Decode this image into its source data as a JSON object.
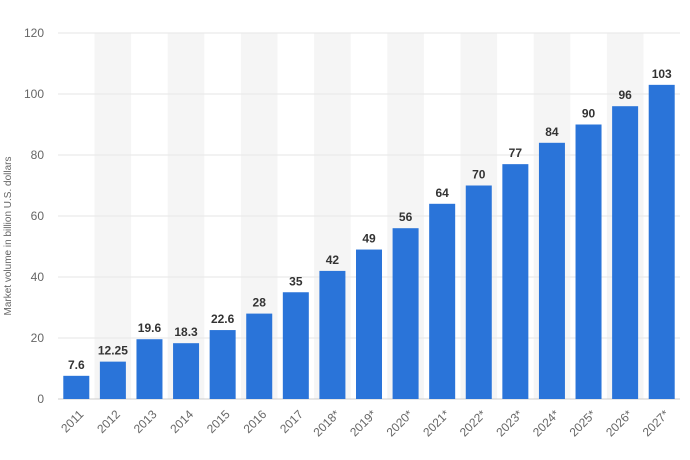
{
  "chart_data": {
    "type": "bar",
    "categories": [
      "2011",
      "2012",
      "2013",
      "2014",
      "2015",
      "2016",
      "2017",
      "2018*",
      "2019*",
      "2020*",
      "2021*",
      "2022*",
      "2023*",
      "2024*",
      "2025*",
      "2026*",
      "2027*"
    ],
    "values": [
      7.6,
      12.25,
      19.6,
      18.3,
      22.6,
      28,
      35,
      42,
      49,
      56,
      64,
      70,
      77,
      84,
      90,
      96,
      103
    ],
    "value_labels": [
      "7.6",
      "12.25",
      "19.6",
      "18.3",
      "22.6",
      "28",
      "35",
      "42",
      "49",
      "56",
      "64",
      "70",
      "77",
      "84",
      "90",
      "96",
      "103"
    ],
    "ylabel": "Market volume in billion U.S. dollars",
    "ylim": [
      0,
      120
    ],
    "yticks": [
      0,
      20,
      40,
      60,
      80,
      100,
      120
    ],
    "ytick_labels": [
      "0",
      "20",
      "40",
      "60",
      "80",
      "100",
      "120"
    ],
    "grid": true,
    "bar_color": "#2a74d9",
    "stripe_color": "#f5f5f5"
  }
}
